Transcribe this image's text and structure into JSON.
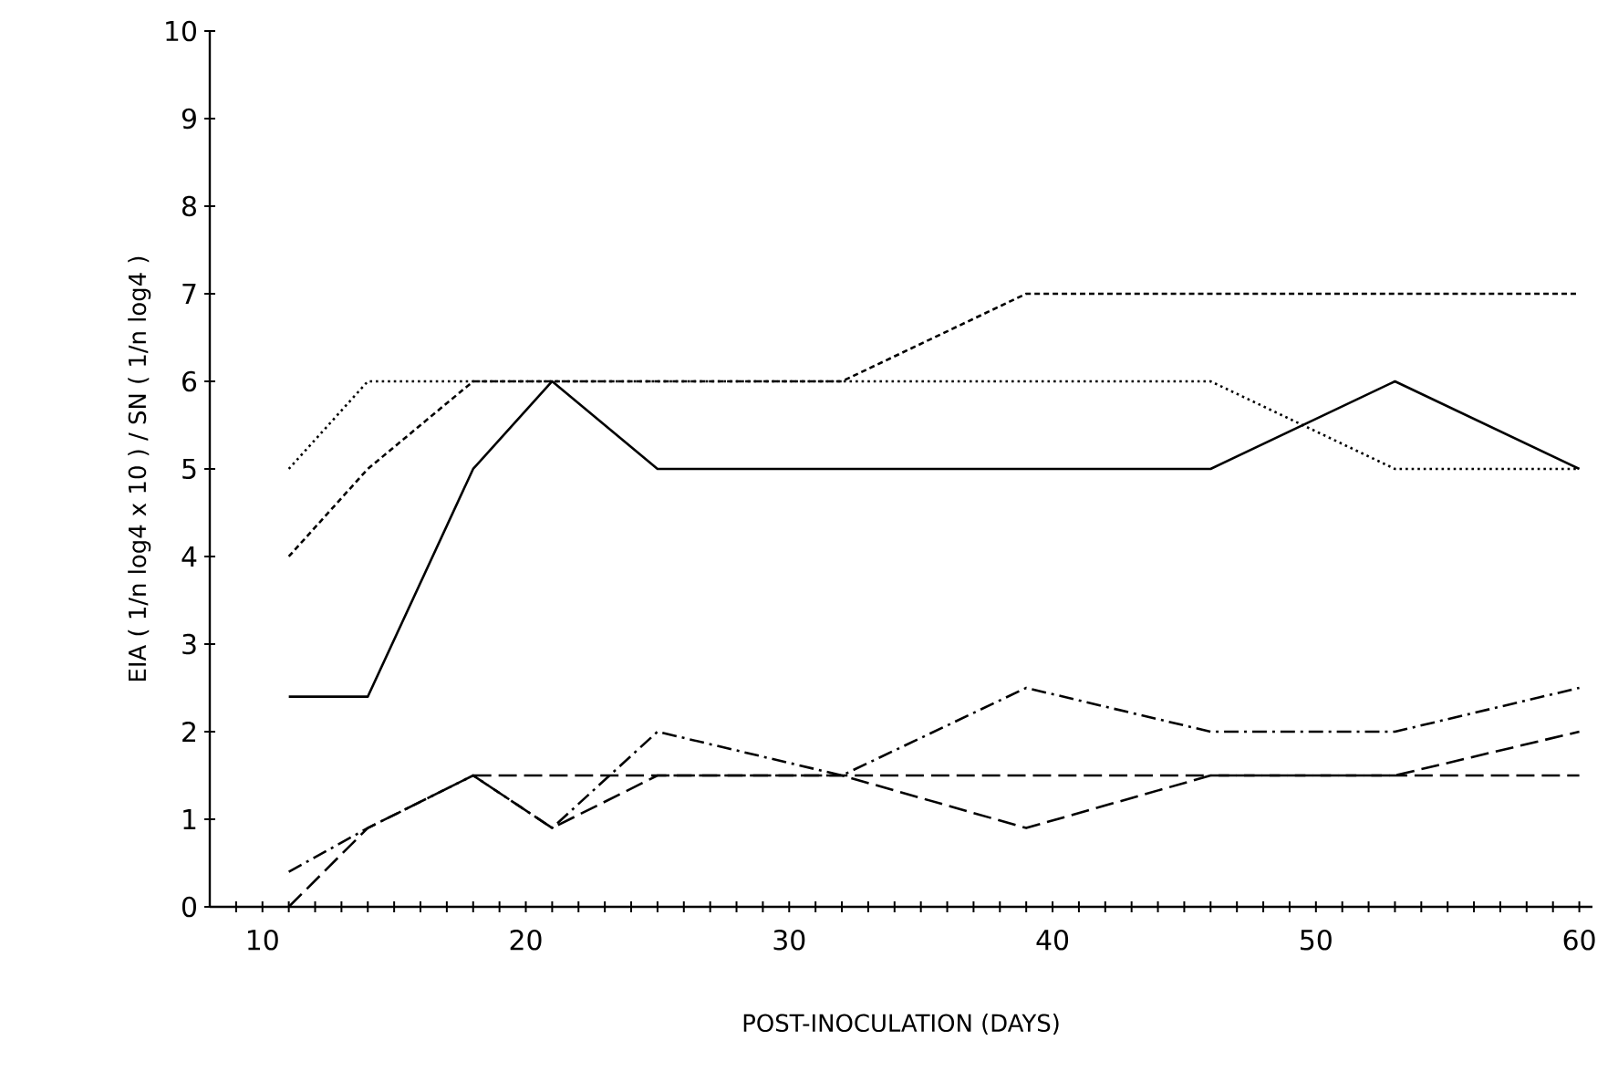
{
  "chart_data": {
    "type": "line",
    "xlabel": "POST-INOCULATION (DAYS)",
    "ylabel": "EIA ( 1/n log4 x 10 ) / SN ( 1/n log4 )",
    "x": [
      11,
      14,
      18,
      21,
      25,
      32,
      39,
      46,
      53,
      60
    ],
    "series": [
      {
        "color": "#000000",
        "line_style": "solid",
        "values": [
          2.4,
          2.4,
          5,
          6,
          5,
          5,
          5,
          5,
          6,
          5
        ]
      },
      {
        "color": "#000000",
        "line_style": "dotted",
        "values": [
          5,
          6,
          6,
          6,
          6,
          6,
          6,
          6,
          5,
          5
        ]
      },
      {
        "color": "#000000",
        "line_style": "dashed",
        "values": [
          4,
          5,
          6,
          6,
          6,
          6,
          7,
          7,
          7,
          7
        ]
      },
      {
        "color": "#000000",
        "line_style": "dashdot",
        "values": [
          0.4,
          0.9,
          1.5,
          0.9,
          2.0,
          1.5,
          2.5,
          2.0,
          2.0,
          2.5
        ]
      },
      {
        "color": "#000000",
        "line_style": "longdash",
        "values": [
          0,
          0.9,
          1.5,
          0.9,
          1.5,
          1.5,
          0.9,
          1.5,
          1.5,
          2.0
        ]
      },
      {
        "color": "#000000",
        "line_style": "longdash",
        "values": [
          null,
          null,
          1.5,
          1.5,
          1.5,
          1.5,
          1.5,
          1.5,
          1.5,
          1.5
        ]
      }
    ],
    "xlim": [
      8,
      60.5
    ],
    "ylim": [
      0,
      10
    ],
    "xticks": [
      {
        "value": 9,
        "label": null
      },
      10,
      {
        "value": 11,
        "label": null
      },
      {
        "value": 12,
        "label": null
      },
      {
        "value": 13,
        "label": null
      },
      {
        "value": 14,
        "label": null
      },
      {
        "value": 15,
        "label": null
      },
      {
        "value": 16,
        "label": null
      },
      {
        "value": 17,
        "label": null
      },
      {
        "value": 18,
        "label": null
      },
      {
        "value": 19,
        "label": null
      },
      20,
      {
        "value": 21,
        "label": null
      },
      {
        "value": 22,
        "label": null
      },
      {
        "value": 23,
        "label": null
      },
      {
        "value": 24,
        "label": null
      },
      {
        "value": 25,
        "label": null
      },
      {
        "value": 26,
        "label": null
      },
      {
        "value": 27,
        "label": null
      },
      {
        "value": 28,
        "label": null
      },
      {
        "value": 29,
        "label": null
      },
      30,
      {
        "value": 31,
        "label": null
      },
      {
        "value": 32,
        "label": null
      },
      {
        "value": 33,
        "label": null
      },
      {
        "value": 34,
        "label": null
      },
      {
        "value": 35,
        "label": null
      },
      {
        "value": 36,
        "label": null
      },
      {
        "value": 37,
        "label": null
      },
      {
        "value": 38,
        "label": null
      },
      {
        "value": 39,
        "label": null
      },
      40,
      {
        "value": 41,
        "label": null
      },
      {
        "value": 42,
        "label": null
      },
      {
        "value": 43,
        "label": null
      },
      {
        "value": 44,
        "label": null
      },
      {
        "value": 45,
        "label": null
      },
      {
        "value": 46,
        "label": null
      },
      {
        "value": 47,
        "label": null
      },
      {
        "value": 48,
        "label": null
      },
      {
        "value": 49,
        "label": null
      },
      50,
      {
        "value": 51,
        "label": null
      },
      {
        "value": 52,
        "label": null
      },
      {
        "value": 53,
        "label": null
      },
      {
        "value": 54,
        "label": null
      },
      {
        "value": 55,
        "label": null
      },
      {
        "value": 56,
        "label": null
      },
      {
        "value": 57,
        "label": null
      },
      {
        "value": 58,
        "label": null
      },
      {
        "value": 59,
        "label": null
      },
      60
    ],
    "yticks": [
      0,
      1,
      2,
      3,
      4,
      5,
      6,
      7,
      8,
      9,
      10
    ],
    "grid": false,
    "marker": "none"
  }
}
